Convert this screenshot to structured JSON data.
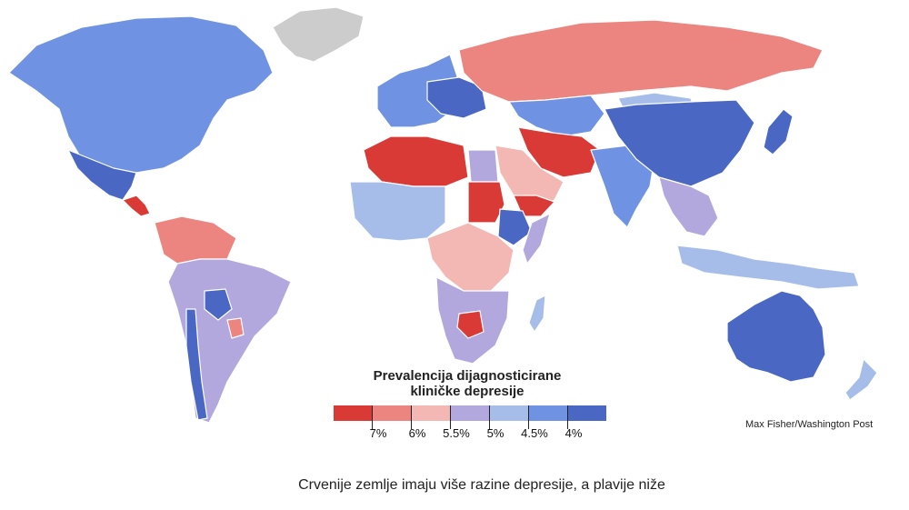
{
  "legend": {
    "title_line1": "Prevalencija dijagnosticirane",
    "title_line2": "kliničke depresije",
    "colors": [
      "#d93a35",
      "#ec8480",
      "#f4b8b4",
      "#b3a8dd",
      "#a7bde9",
      "#6f93e2",
      "#4a68c3"
    ],
    "ticks": [
      "7%",
      "6%",
      "5.5%",
      "5%",
      "4.5%",
      "4%"
    ]
  },
  "credit": "Max Fisher/Washington Post",
  "caption": "Crvenije zemlje imaju više razine depresije, a plavije niže",
  "regions": {
    "greenland": "#cccccc",
    "north_america": "#6f93e2",
    "mexico": "#4a68c3",
    "central_america": "#d93a35",
    "northern_south_america": "#ec8480",
    "south_america": "#b3a8dd",
    "bolivia": "#4a68c3",
    "chile": "#4a68c3",
    "paraguay": "#ec8480",
    "western_europe": "#6f93e2",
    "eastern_europe": "#4a68c3",
    "russia": "#ec8480",
    "central_asia": "#6f93e2",
    "middle_east": "#d93a35",
    "arabia": "#f4b8b4",
    "yemen": "#d93a35",
    "north_africa": "#d93a35",
    "egypt": "#b3a8dd",
    "west_africa": "#a7bde9",
    "sudan": "#d93a35",
    "central_africa": "#f4b8b4",
    "ethiopia": "#4a68c3",
    "somalia": "#b3a8dd",
    "southern_africa": "#b3a8dd",
    "zambia": "#d93a35",
    "madagascar": "#a7bde9",
    "china": "#4a68c3",
    "japan": "#4a68c3",
    "mongolia": "#a7bde9",
    "india": "#6f93e2",
    "southeast_asia": "#b3a8dd",
    "indonesia": "#a7bde9",
    "australia": "#4a68c3",
    "new_zealand": "#a7bde9"
  }
}
